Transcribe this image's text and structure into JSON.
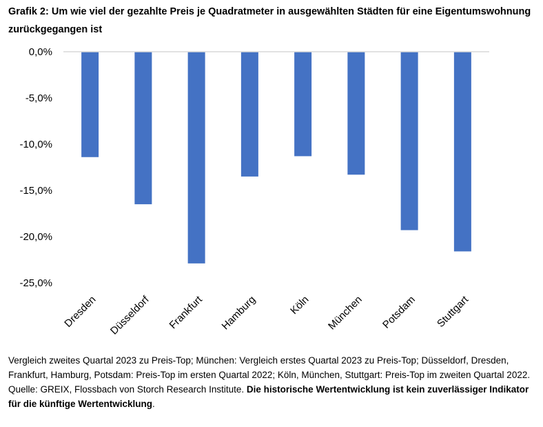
{
  "title": "Grafik 2: Um wie viel der gezahlte Preis je Quadratmeter in ausgewählten Städten für eine Eigentumswohnung zurückgegangen ist",
  "footnote": {
    "text": "Vergleich zweites Quartal 2023 zu Preis-Top; München: Vergleich erstes Quartal 2023 zu Preis-Top; Düsseldorf, Dresden, Frankfurt, Hamburg, Potsdam: Preis-Top im ersten Quartal 2022; Köln, München, Stuttgart: Preis-Top im zweiten Quartal 2022. Quelle: GREIX, Flossbach von Storch Research Institute. ",
    "disclaimer": "Die historische Wertentwicklung ist kein zuverlässiger Indikator für die künftige Wertentwicklung",
    "end": "."
  },
  "colors": {
    "bar": "#4472c4",
    "axis": "#d9d9d9",
    "text": "#000000"
  },
  "chart_data": {
    "type": "bar",
    "categories": [
      "Dresden",
      "Düsseldorf",
      "Frankfurt",
      "Hamburg",
      "Köln",
      "München",
      "Potsdam",
      "Stuttgart"
    ],
    "values": [
      -11.4,
      -16.5,
      -22.9,
      -13.5,
      -11.3,
      -13.3,
      -19.3,
      -21.6
    ],
    "ylim": [
      -25,
      0
    ],
    "yticks": [
      0,
      -5,
      -10,
      -15,
      -20,
      -25
    ],
    "ytick_labels": [
      "0,0%",
      "-5,0%",
      "-10,0%",
      "-15,0%",
      "-20,0%",
      "-25,0%"
    ],
    "xlabel": "",
    "ylabel": "",
    "grid": false,
    "legend": "none"
  }
}
